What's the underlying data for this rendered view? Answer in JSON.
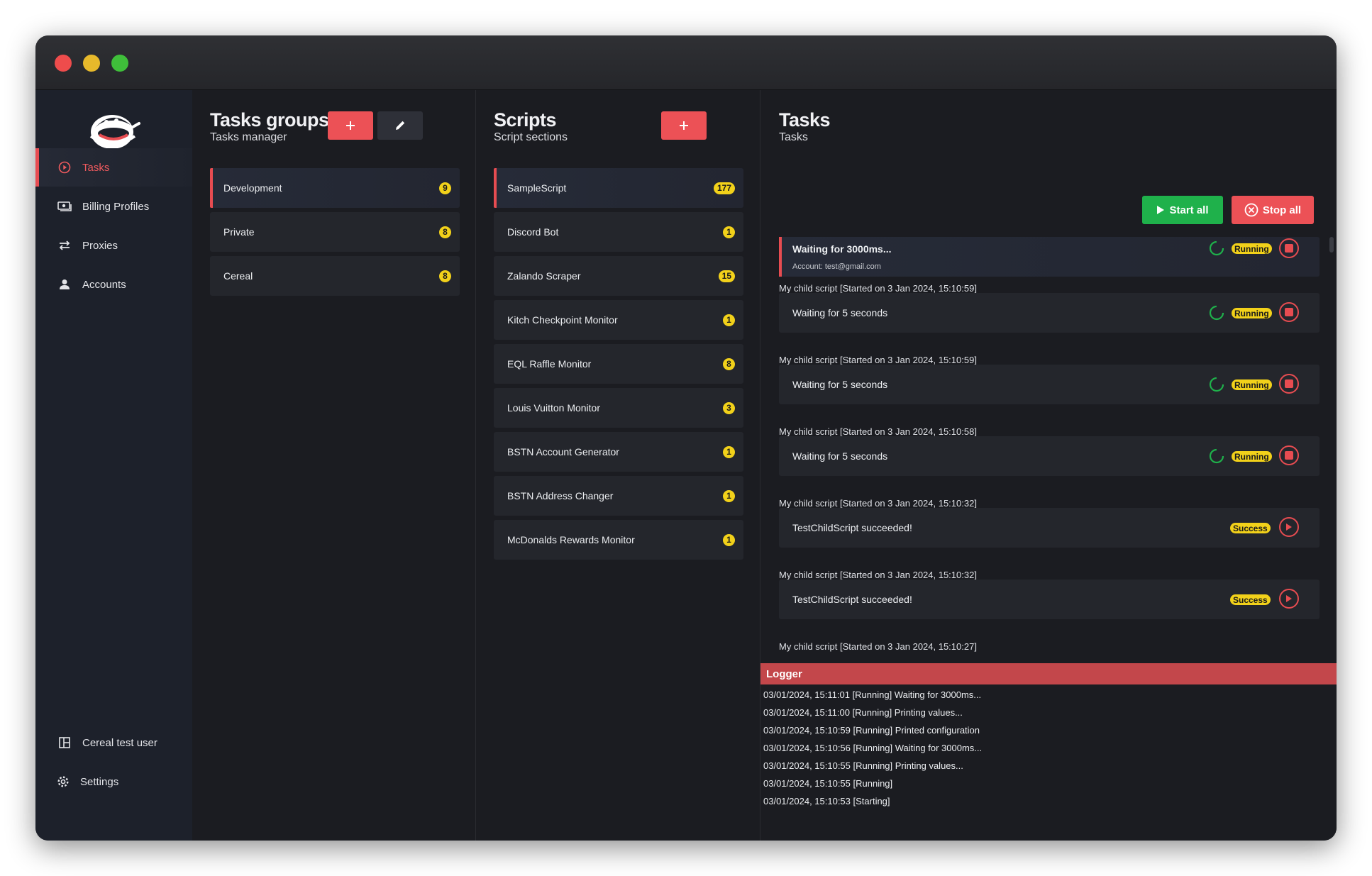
{
  "sidebar": {
    "items": [
      {
        "label": "Tasks",
        "icon": "play-circle-icon",
        "active": true
      },
      {
        "label": "Billing Profiles",
        "icon": "money-icon"
      },
      {
        "label": "Proxies",
        "icon": "swap-arrows-icon"
      },
      {
        "label": "Accounts",
        "icon": "person-icon"
      }
    ],
    "bottom": [
      {
        "label": "Cereal test user",
        "icon": "dashboard-icon"
      },
      {
        "label": "Settings",
        "icon": "gear-icon"
      }
    ]
  },
  "groups": {
    "title": "Tasks groups",
    "subtitle": "Tasks manager",
    "items": [
      {
        "label": "Development",
        "count": "9",
        "selected": true
      },
      {
        "label": "Private",
        "count": "8"
      },
      {
        "label": "Cereal",
        "count": "8"
      }
    ]
  },
  "scripts": {
    "title": "Scripts",
    "subtitle": "Script sections",
    "items": [
      {
        "label": "SampleScript",
        "count": "177",
        "selected": true
      },
      {
        "label": "Discord Bot",
        "count": "1"
      },
      {
        "label": "Zalando Scraper",
        "count": "15"
      },
      {
        "label": "Kitch Checkpoint Monitor",
        "count": "1"
      },
      {
        "label": "EQL Raffle Monitor",
        "count": "8"
      },
      {
        "label": "Louis Vuitton Monitor",
        "count": "3"
      },
      {
        "label": "BSTN Account Generator",
        "count": "1"
      },
      {
        "label": "BSTN Address Changer",
        "count": "1"
      },
      {
        "label": "McDonalds Rewards Monitor",
        "count": "1"
      }
    ]
  },
  "tasks": {
    "title": "Tasks",
    "subtitle": "Tasks",
    "start_all": "Start all",
    "stop_all": "Stop all",
    "main_task": {
      "message": "Waiting for 3000ms...",
      "account": "Account: test@gmail.com",
      "status": "Running"
    },
    "children": [
      {
        "header": "My child script  [Started on 3 Jan 2024, 15:10:59]",
        "message": "Waiting for 5 seconds",
        "status": "Running"
      },
      {
        "header": "My child script  [Started on 3 Jan 2024, 15:10:59]",
        "message": "Waiting for 5 seconds",
        "status": "Running"
      },
      {
        "header": "My child script  [Started on 3 Jan 2024, 15:10:58]",
        "message": "Waiting for 5 seconds",
        "status": "Running"
      },
      {
        "header": "My child script  [Started on 3 Jan 2024, 15:10:32]",
        "message": "TestChildScript succeeded!",
        "status": "Success"
      },
      {
        "header": "My child script  [Started on 3 Jan 2024, 15:10:32]",
        "message": "TestChildScript succeeded!",
        "status": "Success"
      },
      {
        "header": "My child script  [Started on 3 Jan 2024, 15:10:27]"
      }
    ]
  },
  "logger": {
    "title": "Logger",
    "lines": [
      "03/01/2024, 15:11:01 [Running] Waiting for 3000ms...",
      "03/01/2024, 15:11:00 [Running] Printing values...",
      "03/01/2024, 15:10:59 [Running] Printed configuration",
      "03/01/2024, 15:10:56 [Running] Waiting for 3000ms...",
      "03/01/2024, 15:10:55 [Running] Printing values...",
      "03/01/2024, 15:10:55 [Running]",
      "03/01/2024, 15:10:53 [Starting]"
    ]
  },
  "colors": {
    "accent": "#ec5156",
    "badge": "#f2d11a",
    "success_button": "#1fb14b"
  }
}
